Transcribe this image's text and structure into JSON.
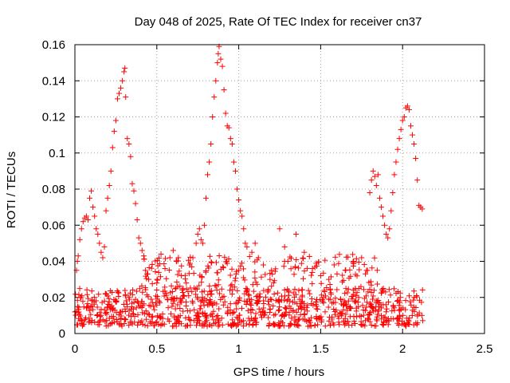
{
  "chart_data": {
    "type": "scatter",
    "title": "Day 048 of 2025, Rate Of TEC Index for receiver cn37",
    "xlabel": "GPS time / hours",
    "ylabel": "ROTI / TECUs",
    "xlim": [
      0,
      2.5
    ],
    "ylim": [
      0,
      0.16
    ],
    "xticks": [
      0,
      0.5,
      1,
      1.5,
      2,
      2.5
    ],
    "xtick_labels": [
      "0",
      "0.5",
      "1",
      "1.5",
      "2",
      "2.5"
    ],
    "yticks": [
      0,
      0.02,
      0.04,
      0.06,
      0.08,
      0.1,
      0.12,
      0.14,
      0.16
    ],
    "ytick_labels": [
      "0",
      "0.02",
      "0.04",
      "0.06",
      "0.08",
      "0.1",
      "0.12",
      "0.14",
      "0.16"
    ],
    "grid": true,
    "marker": "+",
    "color": "#ff0000",
    "series": [
      {
        "name": "ROTI",
        "points": [
          [
            0.0,
            0.012
          ],
          [
            0.01,
            0.035
          ],
          [
            0.015,
            0.04
          ],
          [
            0.02,
            0.043
          ],
          [
            0.03,
            0.052
          ],
          [
            0.04,
            0.058
          ],
          [
            0.05,
            0.062
          ],
          [
            0.06,
            0.064
          ],
          [
            0.07,
            0.065
          ],
          [
            0.08,
            0.063
          ],
          [
            0.09,
            0.075
          ],
          [
            0.1,
            0.079
          ],
          [
            0.11,
            0.07
          ],
          [
            0.12,
            0.065
          ],
          [
            0.13,
            0.058
          ],
          [
            0.14,
            0.055
          ],
          [
            0.15,
            0.05
          ],
          [
            0.16,
            0.045
          ],
          [
            0.17,
            0.042
          ],
          [
            0.18,
            0.048
          ],
          [
            0.19,
            0.068
          ],
          [
            0.2,
            0.075
          ],
          [
            0.21,
            0.082
          ],
          [
            0.22,
            0.09
          ],
          [
            0.23,
            0.103
          ],
          [
            0.24,
            0.112
          ],
          [
            0.25,
            0.118
          ],
          [
            0.26,
            0.13
          ],
          [
            0.27,
            0.133
          ],
          [
            0.28,
            0.136
          ],
          [
            0.29,
            0.14
          ],
          [
            0.3,
            0.145
          ],
          [
            0.305,
            0.147
          ],
          [
            0.31,
            0.131
          ],
          [
            0.32,
            0.108
          ],
          [
            0.33,
            0.105
          ],
          [
            0.34,
            0.098
          ],
          [
            0.35,
            0.083
          ],
          [
            0.36,
            0.079
          ],
          [
            0.37,
            0.072
          ],
          [
            0.38,
            0.063
          ],
          [
            0.39,
            0.053
          ],
          [
            0.4,
            0.05
          ],
          [
            0.41,
            0.046
          ],
          [
            0.42,
            0.043
          ],
          [
            0.43,
            0.035
          ],
          [
            0.44,
            0.033
          ],
          [
            0.45,
            0.03
          ],
          [
            0.5,
            0.028
          ],
          [
            0.55,
            0.036
          ],
          [
            0.58,
            0.042
          ],
          [
            0.6,
            0.046
          ],
          [
            0.62,
            0.04
          ],
          [
            0.65,
            0.032
          ],
          [
            0.68,
            0.028
          ],
          [
            0.7,
            0.038
          ],
          [
            0.72,
            0.042
          ],
          [
            0.74,
            0.05
          ],
          [
            0.75,
            0.055
          ],
          [
            0.76,
            0.058
          ],
          [
            0.77,
            0.052
          ],
          [
            0.78,
            0.05
          ],
          [
            0.79,
            0.06
          ],
          [
            0.8,
            0.075
          ],
          [
            0.81,
            0.088
          ],
          [
            0.82,
            0.095
          ],
          [
            0.83,
            0.105
          ],
          [
            0.84,
            0.12
          ],
          [
            0.85,
            0.131
          ],
          [
            0.86,
            0.14
          ],
          [
            0.87,
            0.15
          ],
          [
            0.875,
            0.155
          ],
          [
            0.88,
            0.159
          ],
          [
            0.89,
            0.152
          ],
          [
            0.9,
            0.148
          ],
          [
            0.91,
            0.135
          ],
          [
            0.92,
            0.122
          ],
          [
            0.93,
            0.115
          ],
          [
            0.94,
            0.114
          ],
          [
            0.95,
            0.108
          ],
          [
            0.96,
            0.105
          ],
          [
            0.97,
            0.095
          ],
          [
            0.98,
            0.09
          ],
          [
            0.99,
            0.08
          ],
          [
            1.0,
            0.074
          ],
          [
            1.01,
            0.068
          ],
          [
            1.02,
            0.065
          ],
          [
            1.03,
            0.058
          ],
          [
            1.04,
            0.05
          ],
          [
            1.05,
            0.048
          ],
          [
            1.08,
            0.045
          ],
          [
            1.1,
            0.05
          ],
          [
            1.12,
            0.042
          ],
          [
            1.15,
            0.038
          ],
          [
            1.2,
            0.035
          ],
          [
            1.25,
            0.058
          ],
          [
            1.28,
            0.048
          ],
          [
            1.3,
            0.04
          ],
          [
            1.35,
            0.055
          ],
          [
            1.4,
            0.045
          ],
          [
            1.45,
            0.036
          ],
          [
            1.5,
            0.032
          ],
          [
            1.55,
            0.03
          ],
          [
            1.6,
            0.033
          ],
          [
            1.65,
            0.035
          ],
          [
            1.7,
            0.04
          ],
          [
            1.75,
            0.042
          ],
          [
            1.78,
            0.035
          ],
          [
            1.8,
            0.078
          ],
          [
            1.81,
            0.085
          ],
          [
            1.82,
            0.09
          ],
          [
            1.83,
            0.087
          ],
          [
            1.84,
            0.082
          ],
          [
            1.85,
            0.088
          ],
          [
            1.86,
            0.075
          ],
          [
            1.87,
            0.07
          ],
          [
            1.88,
            0.065
          ],
          [
            1.89,
            0.06
          ],
          [
            1.9,
            0.055
          ],
          [
            1.91,
            0.053
          ],
          [
            1.92,
            0.058
          ],
          [
            1.93,
            0.068
          ],
          [
            1.94,
            0.078
          ],
          [
            1.95,
            0.088
          ],
          [
            1.96,
            0.095
          ],
          [
            1.97,
            0.102
          ],
          [
            1.98,
            0.108
          ],
          [
            1.99,
            0.113
          ],
          [
            2.0,
            0.118
          ],
          [
            2.01,
            0.12
          ],
          [
            2.02,
            0.125
          ],
          [
            2.03,
            0.126
          ],
          [
            2.04,
            0.124
          ],
          [
            2.05,
            0.115
          ],
          [
            2.06,
            0.11
          ],
          [
            2.07,
            0.105
          ],
          [
            2.08,
            0.097
          ],
          [
            2.09,
            0.085
          ],
          [
            2.1,
            0.071
          ],
          [
            2.11,
            0.07
          ],
          [
            2.12,
            0.069
          ]
        ]
      }
    ],
    "baseline_noise": {
      "description": "dense cloud of points spanning the full time range",
      "x_range": [
        0,
        2.13
      ],
      "y_range": [
        0.004,
        0.025
      ]
    }
  }
}
